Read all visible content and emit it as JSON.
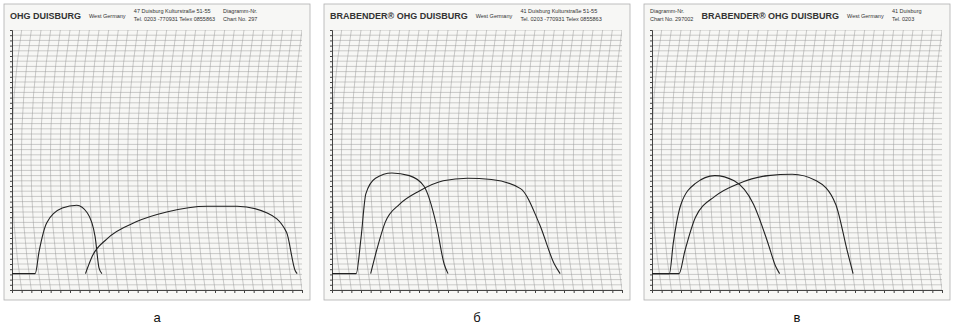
{
  "chart_data": [
    {
      "type": "line",
      "title": "а",
      "annotations": [
        [
          "OHG DUISBURG"
        ],
        [
          "West Germany"
        ],
        [
          "47 Duisburg  Kulturstraße 51-55",
          "Tel. 0203 -770931  Telex 0855863"
        ],
        [
          "Diagramm-Nr.",
          "Chart No. 297"
        ]
      ],
      "xlim": [
        0,
        30
      ],
      "ylim": [
        0,
        1000
      ],
      "xticks": [
        0,
        1,
        2,
        3,
        4,
        5,
        6,
        7,
        8,
        9,
        10,
        11,
        12,
        13,
        14,
        15,
        16,
        17,
        18,
        19,
        20,
        21,
        22,
        23,
        24,
        25,
        26,
        27,
        28,
        29,
        30
      ],
      "yticks": [
        0,
        20,
        40,
        60,
        80,
        100,
        120,
        140,
        160,
        180,
        200,
        220,
        240,
        260,
        280,
        300,
        320,
        340,
        360,
        380,
        400,
        420,
        440,
        460,
        480,
        500,
        520,
        540,
        560,
        580,
        600,
        620,
        640,
        660,
        680,
        700,
        720,
        740,
        760,
        780,
        800,
        820,
        840,
        860,
        880,
        900,
        920,
        940,
        960,
        980,
        1000
      ],
      "grid": true,
      "tick_labels": false,
      "series": [
        {
          "color": "#222222",
          "x": [
            0,
            2.4,
            2.8,
            3.6,
            5.2,
            6.7,
            7.8,
            8.6,
            9.0,
            9.3
          ],
          "values": [
            63,
            63,
            148,
            259,
            315,
            326,
            296,
            204,
            85,
            63
          ]
        },
        {
          "color": "#222222",
          "x": [
            7.6,
            8.3,
            9.8,
            12.9,
            16.0,
            20.2,
            23.3,
            26.4,
            28.4,
            29.3,
            29.5
          ],
          "values": [
            63,
            130,
            196,
            263,
            300,
            322,
            322,
            296,
            222,
            74,
            63
          ]
        }
      ]
    },
    {
      "type": "line",
      "title": "б",
      "annotations": [
        [
          "BRABENDER® OHG DUISBURG"
        ],
        [
          "West Germany"
        ],
        [
          "41 Duisburg  Kulturstraße 51-55",
          "Tel. 0203 -770931  Telex 0855863"
        ]
      ],
      "xlim": [
        0,
        30
      ],
      "ylim": [
        0,
        1000
      ],
      "xticks": [
        0,
        1,
        2,
        3,
        4,
        5,
        6,
        7,
        8,
        9,
        10,
        11,
        12,
        13,
        14,
        15,
        16,
        17,
        18,
        19,
        20,
        21,
        22,
        23,
        24,
        25,
        26,
        27,
        28,
        29,
        30
      ],
      "yticks": [
        0,
        20,
        40,
        60,
        80,
        100,
        120,
        140,
        160,
        180,
        200,
        220,
        240,
        260,
        280,
        300,
        320,
        340,
        360,
        380,
        400,
        420,
        440,
        460,
        480,
        500,
        520,
        540,
        560,
        580,
        600,
        620,
        640,
        660,
        680,
        700,
        720,
        740,
        760,
        780,
        800,
        820,
        840,
        860,
        880,
        900,
        920,
        940,
        960,
        980,
        1000
      ],
      "grid": true,
      "tick_labels": false,
      "series": [
        {
          "color": "#222222",
          "x": [
            0,
            2.5,
            3.0,
            3.5,
            4.5,
            6.2,
            8.0,
            9.5,
            10.8,
            11.6,
            12.0
          ],
          "values": [
            63,
            63,
            200,
            370,
            430,
            450,
            440,
            400,
            250,
            100,
            63
          ]
        },
        {
          "color": "#222222",
          "x": [
            4.0,
            4.6,
            5.5,
            7.0,
            9.0,
            11.5,
            14.0,
            16.5,
            19.5,
            21.5,
            23.0,
            23.6
          ],
          "values": [
            63,
            150,
            260,
            330,
            380,
            420,
            430,
            425,
            390,
            250,
            100,
            63
          ]
        }
      ]
    },
    {
      "type": "line",
      "title": "в",
      "annotations": [
        [
          "Diagramm-Nr.",
          "Chart No. 297002"
        ],
        [
          "BRABENDER® OHG DUISBURG"
        ],
        [
          "West Germany"
        ],
        [
          "41 Duisburg",
          "Tel. 0203"
        ]
      ],
      "xlim": [
        0,
        30
      ],
      "ylim": [
        0,
        1000
      ],
      "xticks": [
        0,
        1,
        2,
        3,
        4,
        5,
        6,
        7,
        8,
        9,
        10,
        11,
        12,
        13,
        14,
        15,
        16,
        17,
        18,
        19,
        20,
        21,
        22,
        23,
        24,
        25,
        26,
        27,
        28,
        29,
        30
      ],
      "yticks": [
        0,
        20,
        40,
        60,
        80,
        100,
        120,
        140,
        160,
        180,
        200,
        220,
        240,
        260,
        280,
        300,
        320,
        340,
        360,
        380,
        400,
        420,
        440,
        460,
        480,
        500,
        520,
        540,
        560,
        580,
        600,
        620,
        640,
        660,
        680,
        700,
        720,
        740,
        760,
        780,
        800,
        820,
        840,
        860,
        880,
        900,
        920,
        940,
        960,
        980,
        1000
      ],
      "grid": true,
      "tick_labels": false,
      "series": [
        {
          "color": "#222222",
          "x": [
            0,
            1.8,
            2.2,
            3.0,
            4.5,
            6.5,
            8.5,
            10.5,
            12.0,
            12.8,
            13.2
          ],
          "values": [
            63,
            63,
            180,
            330,
            410,
            440,
            420,
            330,
            180,
            90,
            63
          ]
        },
        {
          "color": "#222222",
          "x": [
            0,
            2.8,
            3.4,
            4.5,
            6.5,
            9.0,
            12.0,
            14.5,
            17.0,
            19.0,
            20.2,
            20.8
          ],
          "values": [
            63,
            63,
            150,
            280,
            360,
            410,
            440,
            445,
            420,
            330,
            150,
            63
          ]
        }
      ]
    }
  ]
}
